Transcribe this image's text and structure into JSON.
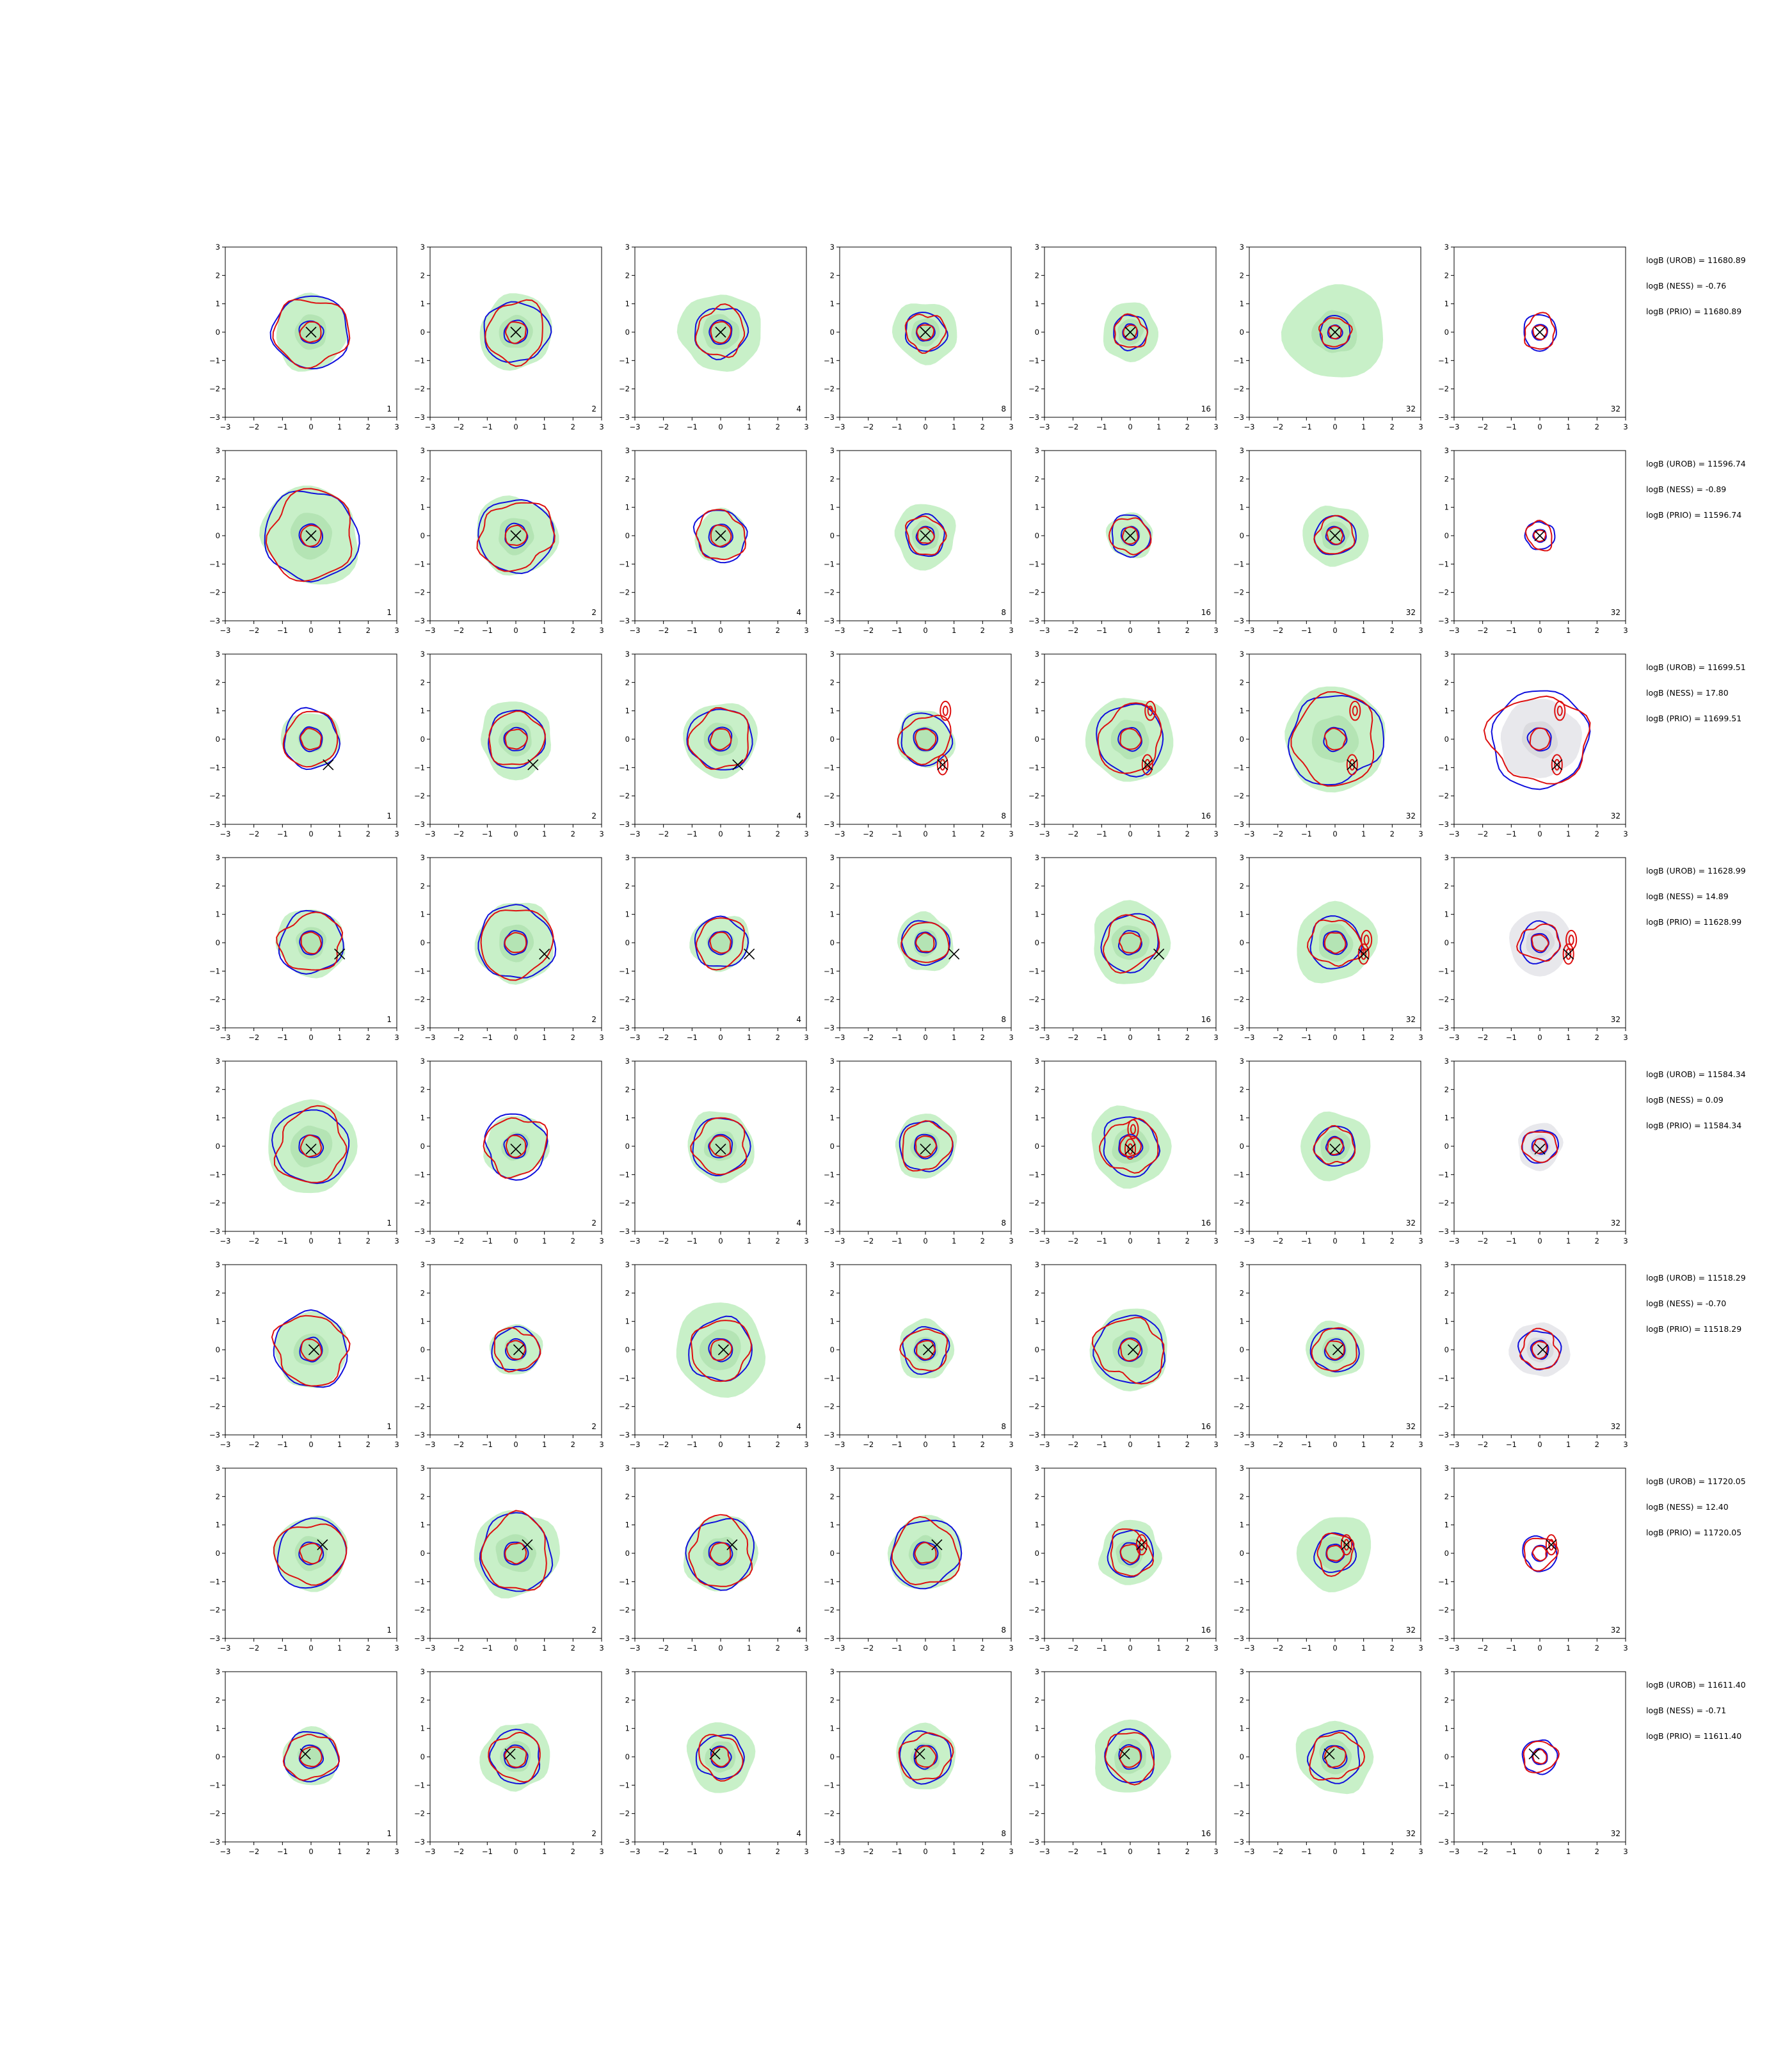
{
  "chart_data": {
    "type": "contour-grid",
    "xlim": [
      -3,
      3
    ],
    "ylim": [
      -3,
      3
    ],
    "ticks": [
      "−3",
      "−2",
      "−1",
      "0",
      "1",
      "2",
      "3"
    ],
    "tick_values": [
      -3,
      -2,
      -1,
      0,
      1,
      2,
      3
    ],
    "column_labels": [
      "1",
      "2",
      "4",
      "8",
      "16",
      "32",
      "32"
    ],
    "colors": {
      "outer_contour": "#1010dd",
      "inner_contour": "#dd1010",
      "fill": "#c8f0c8",
      "fill_last_column": "#e8e8ec",
      "marker": "#000000"
    },
    "rows": [
      {
        "marker": [
          0.0,
          0.0
        ],
        "stats": [
          "logB (UROB) = 11680.89",
          "logB (NESS) = -0.76",
          "logB (PRIO) = 11680.89"
        ]
      },
      {
        "marker": [
          0.0,
          0.0
        ],
        "stats": [
          "logB (UROB) = 11596.74",
          "logB (NESS) = -0.89",
          "logB (PRIO) = 11596.74"
        ]
      },
      {
        "marker": [
          0.6,
          -0.9
        ],
        "stats": [
          "logB (UROB) = 11699.51",
          "logB (NESS) = 17.80",
          "logB (PRIO) = 11699.51"
        ]
      },
      {
        "marker": [
          1.0,
          -0.4
        ],
        "stats": [
          "logB (UROB) = 11628.99",
          "logB (NESS) = 14.89",
          "logB (PRIO) = 11628.99"
        ]
      },
      {
        "marker": [
          0.0,
          -0.1
        ],
        "stats": [
          "logB (UROB) = 11584.34",
          "logB (NESS) = 0.09",
          "logB (PRIO) = 11584.34"
        ]
      },
      {
        "marker": [
          0.1,
          0.0
        ],
        "stats": [
          "logB (UROB) = 11518.29",
          "logB (NESS) = -0.70",
          "logB (PRIO) = 11518.29"
        ]
      },
      {
        "marker": [
          0.4,
          0.3
        ],
        "stats": [
          "logB (UROB) = 11720.05",
          "logB (NESS) = 12.40",
          "logB (PRIO) = 11720.05"
        ]
      },
      {
        "marker": [
          -0.2,
          0.1
        ],
        "stats": [
          "logB (UROB) = 11611.40",
          "logB (NESS) = -0.71",
          "logB (PRIO) = 11611.40"
        ]
      }
    ]
  }
}
